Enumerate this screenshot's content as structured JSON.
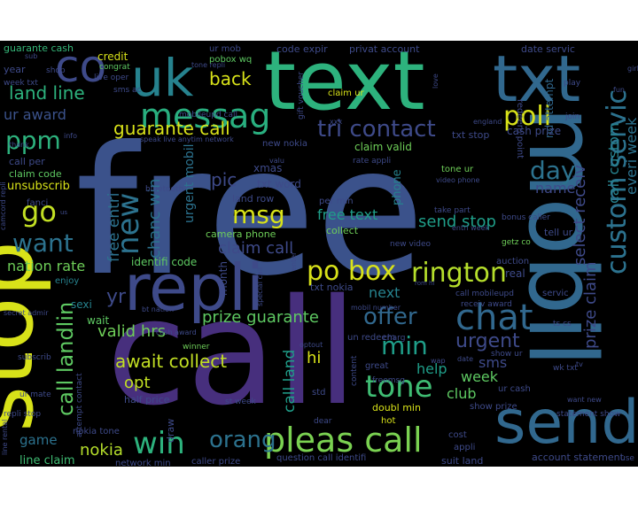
{
  "chart_data": {
    "type": "wordcloud",
    "background": "#000000",
    "colormap": "viridis",
    "words": [
      {
        "text": "free",
        "color": "#3b528b"
      },
      {
        "text": "call",
        "color": "#472f7d"
      },
      {
        "text": "text",
        "color": "#2db27d"
      },
      {
        "text": "mobil",
        "color": "#31688e"
      },
      {
        "text": "uk",
        "color": "#26828e"
      },
      {
        "text": "txt",
        "color": "#31688e"
      },
      {
        "text": "stop",
        "color": "#d8e219"
      },
      {
        "text": "repli",
        "color": "#3e4a89"
      },
      {
        "text": "co",
        "color": "#3e4a89"
      },
      {
        "text": "send",
        "color": "#31688e"
      },
      {
        "text": "messag",
        "color": "#29af7f"
      },
      {
        "text": "poli",
        "color": "#d8e219"
      },
      {
        "text": "ppm",
        "color": "#2db27d"
      },
      {
        "text": "guarante call",
        "color": "#d8e219"
      },
      {
        "text": "tri contact",
        "color": "#3e4a89"
      },
      {
        "text": "msg",
        "color": "#d8e219"
      },
      {
        "text": "go",
        "color": "#c2df23"
      },
      {
        "text": "want",
        "color": "#2c728e"
      },
      {
        "text": "new",
        "color": "#2c728e"
      },
      {
        "text": "chat",
        "color": "#31688e"
      },
      {
        "text": "pleas call",
        "color": "#7ad151"
      },
      {
        "text": "po box",
        "color": "#d8e219"
      },
      {
        "text": "rington",
        "color": "#b5de2b"
      },
      {
        "text": "custom servic",
        "color": "#2c728e"
      },
      {
        "text": "win",
        "color": "#2db27d"
      },
      {
        "text": "orang",
        "color": "#2c728e"
      },
      {
        "text": "tone",
        "color": "#3fbc73"
      },
      {
        "text": "offer",
        "color": "#31688e"
      },
      {
        "text": "min",
        "color": "#1f9e89"
      },
      {
        "text": "urgent",
        "color": "#3e4a89"
      },
      {
        "text": "day",
        "color": "#2c728e"
      },
      {
        "text": "back",
        "color": "#d8e219"
      },
      {
        "text": "land line",
        "color": "#2db27d"
      },
      {
        "text": "ur award",
        "color": "#3b528b"
      },
      {
        "text": "call landlin",
        "color": "#5ec962"
      },
      {
        "text": "prize guarante",
        "color": "#5ec962"
      },
      {
        "text": "await collect",
        "color": "#c2df23"
      },
      {
        "text": "valid hrs",
        "color": "#6ece58"
      },
      {
        "text": "nokia",
        "color": "#b5de2b"
      },
      {
        "text": "opt",
        "color": "#c2df23"
      },
      {
        "text": "yr",
        "color": "#3e4a89"
      },
      {
        "text": "chanc win",
        "color": "#2c728e"
      },
      {
        "text": "free entri",
        "color": "#2c728e"
      },
      {
        "text": "urgent mobil",
        "color": "#2c728e"
      },
      {
        "text": "claim call",
        "color": "#3e4a89"
      },
      {
        "text": "pic",
        "color": "#3e4a89"
      },
      {
        "text": "free text",
        "color": "#1f9e89"
      },
      {
        "text": "send stop",
        "color": "#1f9e89"
      },
      {
        "text": "name",
        "color": "#3e4a89"
      },
      {
        "text": "select receiv",
        "color": "#3e4a89"
      },
      {
        "text": "prize claim",
        "color": "#3e4a89"
      },
      {
        "text": "custom servic",
        "color": "#2c728e"
      },
      {
        "text": "everi week",
        "color": "#2c728e"
      },
      {
        "text": "call custom",
        "color": "#26828e"
      },
      {
        "text": "nation rate",
        "color": "#6ece58"
      },
      {
        "text": "identifi code",
        "color": "#5ec962"
      },
      {
        "text": "hi",
        "color": "#d8e219"
      },
      {
        "text": "call land",
        "color": "#1f9e89"
      },
      {
        "text": "week",
        "color": "#5ec962"
      },
      {
        "text": "club",
        "color": "#5ec962"
      },
      {
        "text": "sms",
        "color": "#3e4a89"
      },
      {
        "text": "help",
        "color": "#1f9e89"
      },
      {
        "text": "next",
        "color": "#26828e"
      },
      {
        "text": "game",
        "color": "#2c728e"
      },
      {
        "text": "line claim",
        "color": "#3fbc73"
      },
      {
        "text": "credit",
        "color": "#d8e219"
      },
      {
        "text": "guarante cash",
        "color": "#35b779"
      },
      {
        "text": "phone",
        "color": "#26828e"
      },
      {
        "text": "collect",
        "color": "#6ece58"
      },
      {
        "text": "sexi",
        "color": "#26828e"
      },
      {
        "text": "wait",
        "color": "#5ec962"
      },
      {
        "text": "enjoy",
        "color": "#26828e"
      },
      {
        "text": "fanci",
        "color": "#3e4a89"
      },
      {
        "text": "unsubscrib",
        "color": "#d8e219"
      },
      {
        "text": "claim code",
        "color": "#5ec962"
      },
      {
        "text": "call per",
        "color": "#3e4a89"
      },
      {
        "text": "year",
        "color": "#3e4a89"
      },
      {
        "text": "shop",
        "color": "#3e4a89"
      },
      {
        "text": "congrat",
        "color": "#5ec962"
      },
      {
        "text": "live oper",
        "color": "#3e4a89"
      },
      {
        "text": "sms ac",
        "color": "#3e4a89"
      },
      {
        "text": "ur mob",
        "color": "#3e4a89"
      },
      {
        "text": "pobox wq",
        "color": "#5ec962"
      },
      {
        "text": "tone repli",
        "color": "#3e4a89"
      },
      {
        "text": "code expir",
        "color": "#3e4a89"
      },
      {
        "text": "privat account",
        "color": "#3e4a89"
      },
      {
        "text": "date servic",
        "color": "#3e4a89"
      },
      {
        "text": "nd attempt",
        "color": "#31688e"
      },
      {
        "text": "cash prize",
        "color": "#3e4a89"
      },
      {
        "text": "redeem point",
        "color": "#3e4a89"
      },
      {
        "text": "claim valid",
        "color": "#6ece58"
      },
      {
        "text": "txt stop",
        "color": "#3e4a89"
      },
      {
        "text": "claim ur",
        "color": "#d8e219"
      },
      {
        "text": "gift voucher",
        "color": "#3e4a89"
      },
      {
        "text": "mobileupd call",
        "color": "#3e4a89"
      },
      {
        "text": "speak live anytim network",
        "color": "#3e4a89"
      },
      {
        "text": "new nokia",
        "color": "#3e4a89"
      },
      {
        "text": "rate appli",
        "color": "#3e4a89"
      },
      {
        "text": "txt word",
        "color": "#3e4a89"
      },
      {
        "text": "xmas",
        "color": "#3e4a89"
      },
      {
        "text": "land row",
        "color": "#3e4a89"
      },
      {
        "text": "bluetooth",
        "color": "#3e4a89"
      },
      {
        "text": "camera phone",
        "color": "#6ece58"
      },
      {
        "text": "per min",
        "color": "#3e4a89"
      },
      {
        "text": "video phone",
        "color": "#3e4a89"
      },
      {
        "text": "tone ur",
        "color": "#6ece58"
      },
      {
        "text": "take part",
        "color": "#3e4a89"
      },
      {
        "text": "entri week",
        "color": "#3e4a89"
      },
      {
        "text": "bonus caller",
        "color": "#3e4a89"
      },
      {
        "text": "getz co",
        "color": "#6ece58"
      },
      {
        "text": "tell ur",
        "color": "#3e4a89"
      },
      {
        "text": "new video",
        "color": "#3e4a89"
      },
      {
        "text": "auction",
        "color": "#3e4a89"
      },
      {
        "text": "real",
        "color": "#3e4a89"
      },
      {
        "text": "call mobileupd",
        "color": "#3e4a89"
      },
      {
        "text": "servic",
        "color": "#3e4a89"
      },
      {
        "text": "receiv award",
        "color": "#3e4a89"
      },
      {
        "text": "un redeem",
        "color": "#3e4a89"
      },
      {
        "text": "charg",
        "color": "#3e4a89"
      },
      {
        "text": "mobil number",
        "color": "#3e4a89"
      },
      {
        "text": "txt nokia",
        "color": "#3e4a89"
      },
      {
        "text": "special call",
        "color": "#3e4a89"
      },
      {
        "text": "month",
        "color": "#3e4a89"
      },
      {
        "text": "bt nation",
        "color": "#3e4a89"
      },
      {
        "text": "secret admir",
        "color": "#3e4a89"
      },
      {
        "text": "cash award",
        "color": "#3e4a89"
      },
      {
        "text": "winner",
        "color": "#6ece58"
      },
      {
        "text": "subscrib",
        "color": "#3e4a89"
      },
      {
        "text": "ur mate",
        "color": "#3e4a89"
      },
      {
        "text": "half price",
        "color": "#3e4a89"
      },
      {
        "text": "draw",
        "color": "#3e4a89"
      },
      {
        "text": "st week",
        "color": "#3e4a89"
      },
      {
        "text": "line rental",
        "color": "#3e4a89"
      },
      {
        "text": "attempt contact",
        "color": "#3e4a89"
      },
      {
        "text": "nokia tone",
        "color": "#3e4a89"
      },
      {
        "text": "network min",
        "color": "#3e4a89"
      },
      {
        "text": "caller prize",
        "color": "#3e4a89"
      },
      {
        "text": "question call identifi",
        "color": "#3e4a89"
      },
      {
        "text": "suit land",
        "color": "#3e4a89"
      },
      {
        "text": "account statement",
        "color": "#3e4a89"
      },
      {
        "text": "cost",
        "color": "#3e4a89"
      },
      {
        "text": "appli",
        "color": "#3e4a89"
      },
      {
        "text": "doubl min",
        "color": "#d8e219"
      },
      {
        "text": "hot",
        "color": "#d8e219"
      },
      {
        "text": "great",
        "color": "#3e4a89"
      },
      {
        "text": "content",
        "color": "#3e4a89"
      },
      {
        "text": "freemsg",
        "color": "#3e4a89"
      },
      {
        "text": "std",
        "color": "#3e4a89"
      },
      {
        "text": "dear",
        "color": "#3e4a89"
      },
      {
        "text": "ur cash",
        "color": "#3e4a89"
      },
      {
        "text": "show prize",
        "color": "#3e4a89"
      },
      {
        "text": "statement show",
        "color": "#3e4a89"
      },
      {
        "text": "want new",
        "color": "#3e4a89"
      },
      {
        "text": "use",
        "color": "#3e4a89"
      },
      {
        "text": "show ur",
        "color": "#3e4a89"
      },
      {
        "text": "wk txt",
        "color": "#3e4a89"
      },
      {
        "text": "tv",
        "color": "#3e4a89"
      },
      {
        "text": "ts cs",
        "color": "#3e4a89"
      },
      {
        "text": "repli stop",
        "color": "#3e4a89"
      },
      {
        "text": "week txt",
        "color": "#3e4a89"
      },
      {
        "text": "info",
        "color": "#3e4a89"
      },
      {
        "text": "thank",
        "color": "#3e4a89"
      },
      {
        "text": "camcord repli",
        "color": "#3e4a89"
      },
      {
        "text": "sub",
        "color": "#3e4a89"
      },
      {
        "text": "girl",
        "color": "#3e4a89"
      },
      {
        "text": "play",
        "color": "#3e4a89"
      },
      {
        "text": "love",
        "color": "#3e4a89"
      },
      {
        "text": "fun",
        "color": "#3e4a89"
      },
      {
        "text": "join",
        "color": "#3e4a89"
      },
      {
        "text": "england",
        "color": "#3e4a89"
      },
      {
        "text": "valu",
        "color": "#3e4a89"
      },
      {
        "text": "rom hl",
        "color": "#3e4a89"
      },
      {
        "text": "optout",
        "color": "#3e4a89"
      },
      {
        "text": "enter",
        "color": "#3e4a89"
      },
      {
        "text": "wap",
        "color": "#3e4a89"
      },
      {
        "text": "date",
        "color": "#3e4a89"
      },
      {
        "text": "xxx",
        "color": "#3e4a89"
      },
      {
        "text": "us",
        "color": "#3e4a89"
      }
    ]
  }
}
